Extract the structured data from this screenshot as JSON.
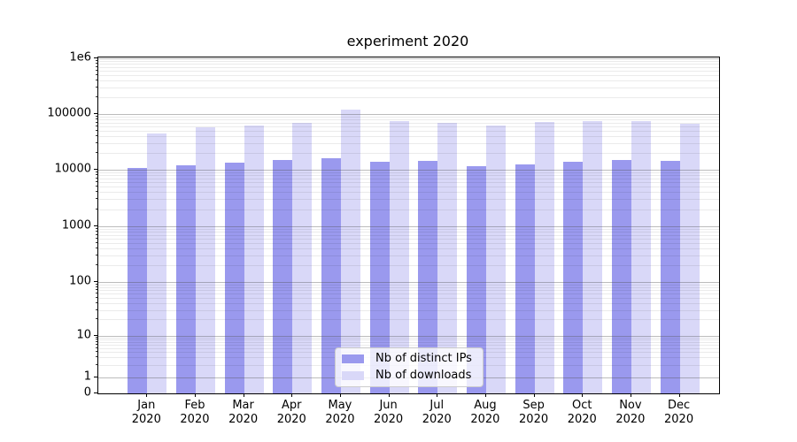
{
  "title": "experiment 2020",
  "colors": {
    "distinct_ips": "#9a99ee",
    "downloads": "#d9d8f8",
    "major_grid": "#b0b0b0",
    "minor_grid": "#e6e6e6",
    "spine": "#000000"
  },
  "legend": {
    "items": [
      {
        "label": "Nb of distinct IPs",
        "series": "distinct_ips"
      },
      {
        "label": "Nb of downloads",
        "series": "downloads"
      }
    ]
  },
  "y_axis": {
    "ticks": [
      {
        "label": "0",
        "value": 0
      },
      {
        "label": "1",
        "value": 1
      },
      {
        "label": "10",
        "value": 10
      },
      {
        "label": "100",
        "value": 100
      },
      {
        "label": "1000",
        "value": 1000
      },
      {
        "label": "10000",
        "value": 10000
      },
      {
        "label": "100000",
        "value": 100000
      },
      {
        "label": "1e6",
        "value": 1000000
      }
    ]
  },
  "x_axis": {
    "year": "2020",
    "months": [
      "Jan",
      "Feb",
      "Mar",
      "Apr",
      "May",
      "Jun",
      "Jul",
      "Aug",
      "Sep",
      "Oct",
      "Nov",
      "Dec"
    ]
  },
  "chart_data": {
    "type": "bar",
    "title": "experiment 2020",
    "categories": [
      "Jan 2020",
      "Feb 2020",
      "Mar 2020",
      "Apr 2020",
      "May 2020",
      "Jun 2020",
      "Jul 2020",
      "Aug 2020",
      "Sep 2020",
      "Oct 2020",
      "Nov 2020",
      "Dec 2020"
    ],
    "series": [
      {
        "name": "Nb of distinct IPs",
        "color": "#9a99ee",
        "values": [
          10900,
          11900,
          13200,
          15000,
          15900,
          14100,
          14400,
          11700,
          12400,
          14000,
          15200,
          14500
        ]
      },
      {
        "name": "Nb of downloads",
        "color": "#d9d8f8",
        "values": [
          44000,
          57000,
          63000,
          70000,
          120000,
          75000,
          70000,
          62000,
          73000,
          74000,
          74500,
          67000
        ]
      }
    ],
    "xlabel": "",
    "ylabel": "",
    "yscale": "symlog",
    "ylim": [
      0,
      1000000
    ],
    "grid": "both",
    "legend_position": "lower center"
  }
}
